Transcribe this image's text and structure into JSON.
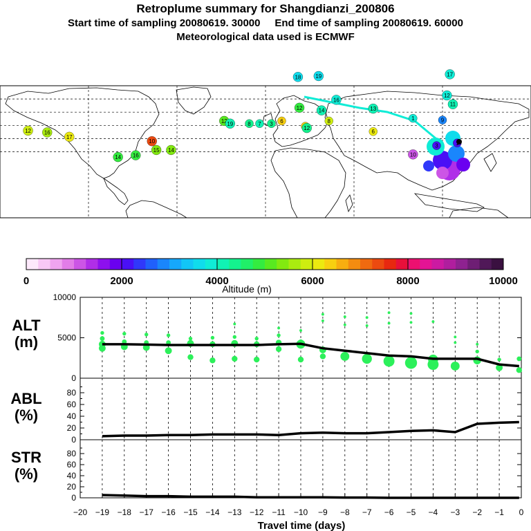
{
  "header": {
    "title": "Retroplume summary for Shangdianzi_200806",
    "sampling_line": "Start time of sampling 20080619. 30000     End time of sampling 20080619. 60000",
    "met_line": "Meteorological data used is ECMWF"
  },
  "colorbar": {
    "ticks": [
      "0",
      "2000",
      "4000",
      "6000",
      "8000",
      "10000"
    ],
    "label": "Altitude  (m)",
    "colors": [
      "#fde9fb",
      "#f8c8f5",
      "#f0a4f0",
      "#e27de8",
      "#cc55e6",
      "#b02ee8",
      "#8d10ee",
      "#6a00f0",
      "#4a10f6",
      "#3038fa",
      "#2060fc",
      "#1a86fc",
      "#16a8fc",
      "#12c6f6",
      "#10dcec",
      "#10ecd6",
      "#10f2b4",
      "#14f28e",
      "#20f068",
      "#34ec40",
      "#58ea20",
      "#82ea10",
      "#aaec10",
      "#ceee10",
      "#ecea10",
      "#f8d010",
      "#f8ae10",
      "#f48c10",
      "#f06a10",
      "#ec4a10",
      "#e82810",
      "#e8103a",
      "#ec1070",
      "#e41494",
      "#cc1aa2",
      "#b01e9e",
      "#8e2290",
      "#6e1e74",
      "#501858",
      "#3a1040"
    ]
  },
  "map": {
    "labels": [
      {
        "text": "17",
        "lon": 125,
        "lat": 63,
        "alt": 3900
      },
      {
        "text": "18",
        "lon": 22,
        "lat": 60,
        "alt": 3700
      },
      {
        "text": "19",
        "lon": 36,
        "lat": 61,
        "alt": 3700
      },
      {
        "text": "12",
        "lon": 123,
        "lat": 39,
        "alt": 3800
      },
      {
        "text": "11",
        "lon": 127,
        "lat": 29,
        "alt": 4000
      },
      {
        "text": "16",
        "lon": 48,
        "lat": 34,
        "alt": 3800
      },
      {
        "text": "14",
        "lon": 38,
        "lat": 22,
        "alt": 4200
      },
      {
        "text": "13",
        "lon": 73,
        "lat": 24,
        "alt": 4000
      },
      {
        "text": "1",
        "lon": 100,
        "lat": 13,
        "alt": 3900
      },
      {
        "text": "9",
        "lon": 120,
        "lat": 11,
        "alt": 2800
      },
      {
        "text": "8",
        "lon": 43,
        "lat": 10,
        "alt": 5800
      },
      {
        "text": "7",
        "lon": 27,
        "lat": 4,
        "alt": 6400
      },
      {
        "text": "12",
        "lon": 28,
        "lat": 2,
        "alt": 4300
      },
      {
        "text": "6",
        "lon": 73,
        "lat": -2,
        "alt": 6100
      },
      {
        "text": "12",
        "lon": -28,
        "lat": 10,
        "alt": 5200
      },
      {
        "text": "19",
        "lon": -24,
        "lat": 7,
        "alt": 4200
      },
      {
        "text": "8",
        "lon": -11,
        "lat": 7,
        "alt": 4300
      },
      {
        "text": "7",
        "lon": -4,
        "lat": 7,
        "alt": 4200
      },
      {
        "text": "3",
        "lon": 4,
        "lat": 7,
        "alt": 4300
      },
      {
        "text": "3",
        "lon": 116,
        "lat": -18,
        "alt": 2000
      },
      {
        "text": "1",
        "lon": 130,
        "lat": -15,
        "alt": 2000
      },
      {
        "text": "10",
        "lon": 100,
        "lat": -28,
        "alt": 1200
      },
      {
        "text": "12",
        "lon": -161,
        "lat": -1,
        "alt": 5800
      },
      {
        "text": "16",
        "lon": -148,
        "lat": -3,
        "alt": 5600
      },
      {
        "text": "17",
        "lon": -133,
        "lat": -8,
        "alt": 6200
      },
      {
        "text": "14",
        "lon": -100,
        "lat": -31,
        "alt": 4800
      },
      {
        "text": "16",
        "lon": -88,
        "lat": -29,
        "alt": 4800
      },
      {
        "text": "15",
        "lon": -74,
        "lat": -23,
        "alt": 5400
      },
      {
        "text": "14",
        "lon": -64,
        "lat": -23,
        "alt": 5300
      },
      {
        "text": "10",
        "lon": -77,
        "lat": -13,
        "alt": 7400
      },
      {
        "text": "12",
        "lon": 23,
        "lat": 25,
        "alt": 4800
      },
      {
        "text": "6",
        "lon": 11,
        "lat": 10,
        "alt": 6400
      }
    ]
  },
  "chart_data": [
    {
      "type": "line",
      "title": "ALT (m)",
      "xlabel": "Travel time (days)",
      "ylabel": "ALT (m)",
      "x": [
        -19,
        -18,
        -17,
        -16,
        -15,
        -14,
        -13,
        -12,
        -11,
        -10,
        -9,
        -8,
        -7,
        -6,
        -5,
        -4,
        -3,
        -2,
        -1,
        -0.1
      ],
      "values": [
        4200,
        4200,
        4150,
        4100,
        4100,
        4100,
        4100,
        4100,
        4200,
        4250,
        3700,
        3400,
        3100,
        2800,
        2700,
        2400,
        2400,
        2400,
        1700,
        1500
      ],
      "ylim": [
        0,
        10000
      ],
      "yticks": [
        "10000",
        "5000",
        "0"
      ],
      "scatter": {
        "x": [
          -19,
          -19,
          -19,
          -19,
          -18,
          -18,
          -18,
          -17,
          -17,
          -17,
          -16,
          -16,
          -16,
          -15,
          -15,
          -15,
          -14,
          -14,
          -14,
          -13,
          -13,
          -13,
          -13,
          -12,
          -12,
          -12,
          -11,
          -11,
          -11,
          -11,
          -10,
          -10,
          -10,
          -10,
          -9,
          -9,
          -9,
          -9,
          -8,
          -8,
          -8,
          -7,
          -7,
          -7,
          -6,
          -6,
          -6,
          -5,
          -5,
          -5,
          -4,
          -4,
          -4,
          -3,
          -3,
          -3,
          -2,
          -2,
          -2,
          -1,
          -1,
          -0.1,
          -0.1
        ],
        "y": [
          5600,
          4900,
          4200,
          3700,
          5500,
          4500,
          3900,
          5400,
          4400,
          3800,
          5300,
          4400,
          3400,
          4900,
          4300,
          2600,
          5000,
          4200,
          2200,
          6700,
          5100,
          4300,
          2400,
          4900,
          4200,
          2300,
          6200,
          5300,
          4400,
          3600,
          5900,
          4500,
          4200,
          2300,
          7900,
          7100,
          3500,
          2700,
          7600,
          6600,
          2700,
          7500,
          6500,
          2400,
          8100,
          6800,
          2100,
          8000,
          6900,
          1900,
          7000,
          2300,
          1700,
          5100,
          4400,
          1500,
          4200,
          3300,
          2200,
          2300,
          1300,
          2400,
          1000
        ],
        "size": [
          2,
          3,
          5,
          5,
          2,
          3,
          5,
          2,
          3,
          5,
          2,
          3,
          5,
          2,
          5,
          4,
          2,
          4,
          4,
          1,
          2,
          5,
          4,
          2,
          4,
          4,
          1,
          2,
          4,
          4,
          1,
          3,
          7,
          4,
          1,
          1,
          5,
          4,
          1,
          1,
          7,
          1,
          1,
          8,
          1,
          1,
          9,
          1,
          1,
          10,
          1,
          8,
          9,
          1,
          1,
          7,
          1,
          2,
          6,
          2,
          5,
          3,
          4
        ]
      }
    },
    {
      "type": "line",
      "title": "ABL (%)",
      "ylabel": "ABL (%)",
      "x": [
        -19,
        -18,
        -17,
        -16,
        -15,
        -14,
        -13,
        -12,
        -11,
        -10,
        -9,
        -8,
        -7,
        -6,
        -5,
        -4,
        -3,
        -2,
        -1,
        -0.1
      ],
      "values": [
        6,
        7,
        7,
        8,
        8,
        9,
        9,
        9,
        8,
        11,
        12,
        11,
        11,
        13,
        15,
        16,
        13,
        27,
        29,
        30
      ],
      "ylim": [
        0,
        100
      ],
      "yticks": [
        "80",
        "60",
        "40",
        "20",
        "0"
      ]
    },
    {
      "type": "line",
      "title": "STR (%)",
      "ylabel": "STR (%)",
      "x": [
        -19,
        -18,
        -17,
        -16,
        -15,
        -14,
        -13,
        -12,
        -11,
        -10,
        -9,
        -8,
        -7,
        -6,
        -5,
        -4,
        -3,
        -2,
        -1,
        -0.1
      ],
      "values": [
        5,
        4,
        3,
        3,
        2,
        2,
        2,
        1,
        1,
        1,
        1,
        0.5,
        0.5,
        0,
        0,
        0,
        0,
        0,
        0,
        0
      ],
      "ylim": [
        0,
        100
      ],
      "yticks": [
        "80",
        "60",
        "40",
        "20",
        "0"
      ]
    }
  ],
  "labels": {
    "alt_l1": "ALT",
    "alt_l2": "(m)",
    "abl_l1": "ABL",
    "abl_l2": "(%)",
    "str_l1": "STR",
    "str_l2": "(%)"
  },
  "xaxis": {
    "ticks": [
      "−20",
      "−19",
      "−18",
      "−17",
      "−16",
      "−15",
      "−14",
      "−13",
      "−12",
      "−11",
      "−10",
      "−9",
      "−8",
      "−7",
      "−6",
      "−5",
      "−4",
      "−3",
      "−2",
      "−1",
      "0"
    ],
    "label": "Travel time (days)"
  }
}
